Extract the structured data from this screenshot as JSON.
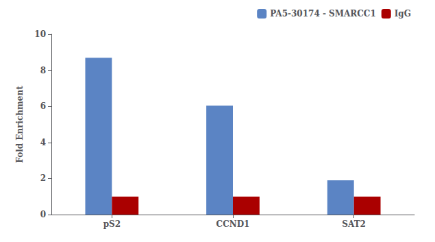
{
  "chart_data": {
    "type": "bar",
    "categories": [
      "pS2",
      "CCND1",
      "SAT2"
    ],
    "series": [
      {
        "name": "PA5-30174 - SMARCC1",
        "color": "#5B84C4",
        "values": [
          8.7,
          6.05,
          1.9
        ]
      },
      {
        "name": "IgG",
        "color": "#AA0000",
        "values": [
          1.0,
          1.0,
          1.0
        ]
      }
    ],
    "ylabel": "Fold Enrichment",
    "ylim": [
      0,
      10
    ],
    "yticks": [
      0,
      2,
      4,
      6,
      8,
      10
    ],
    "grid": false,
    "legend": "upper right"
  }
}
